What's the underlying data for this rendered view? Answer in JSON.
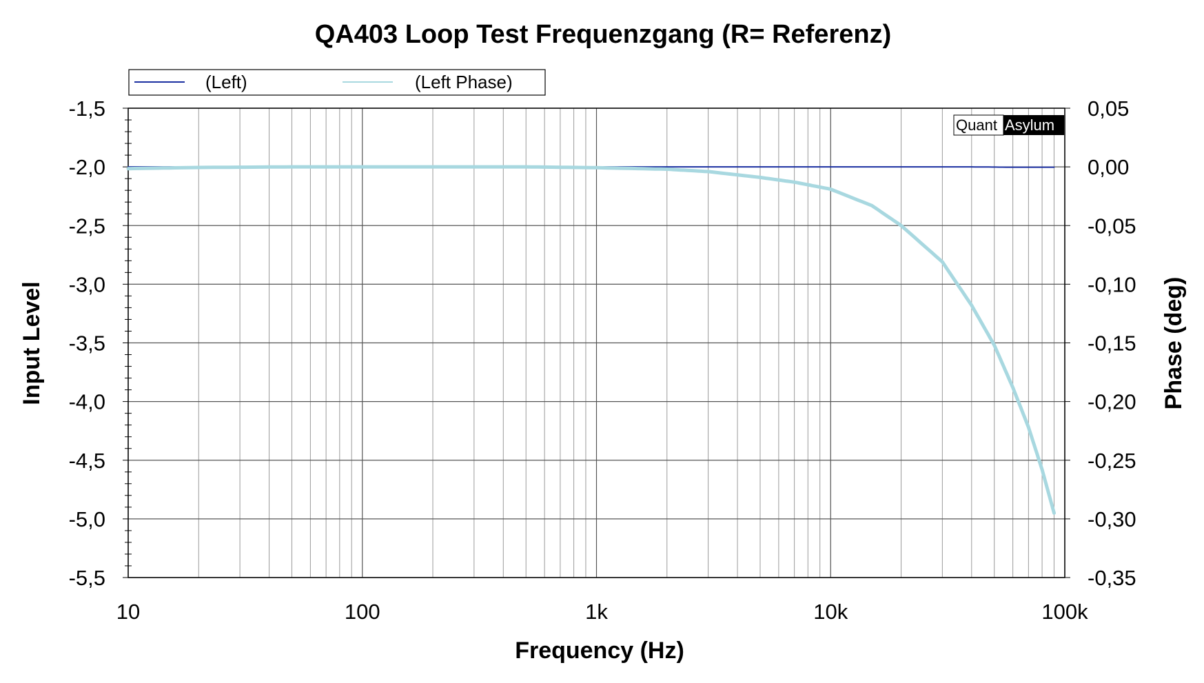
{
  "chart_data": {
    "type": "line",
    "title": "QA403 Loop Test Frequenzgang (R= Referenz)",
    "xlabel": "Frequency (Hz)",
    "ylabel": "Input Level",
    "y2label": "Phase (deg)",
    "xscale": "log",
    "xlim": [
      10,
      100000
    ],
    "ylim": [
      -5.5,
      -1.5
    ],
    "y2lim": [
      -0.35,
      0.05
    ],
    "grid": true,
    "legend_position": "top-left",
    "x_ticks": [
      10,
      100,
      1000,
      10000,
      100000
    ],
    "x_tick_labels": [
      "10",
      "100",
      "1k",
      "10k",
      "100k"
    ],
    "y_ticks": [
      -1.5,
      -2.0,
      -2.5,
      -3.0,
      -3.5,
      -4.0,
      -4.5,
      -5.0,
      -5.5
    ],
    "y_tick_labels": [
      "-1,5",
      "-2,0",
      "-2,5",
      "-3,0",
      "-3,5",
      "-4,0",
      "-4,5",
      "-5,0",
      "-5,5"
    ],
    "y2_ticks": [
      0.05,
      0.0,
      -0.05,
      -0.1,
      -0.15,
      -0.2,
      -0.25,
      -0.3,
      -0.35
    ],
    "y2_tick_labels": [
      "0,05",
      "0,00",
      "-0,05",
      "-0,10",
      "-0,15",
      "-0,20",
      "-0,25",
      "-0,30",
      "-0,35"
    ],
    "series": [
      {
        "name": "(Left)",
        "axis": "left",
        "color": "#1a2fa0",
        "x": [
          10,
          100,
          1000,
          10000,
          40000,
          60000,
          90000
        ],
        "y": [
          -2.0,
          -2.0,
          -2.0,
          -2.0,
          -2.0,
          -2.003,
          -2.003
        ]
      },
      {
        "name": "(Left Phase)",
        "axis": "right",
        "color": "#a8d8e0",
        "x": [
          10,
          20,
          50,
          100,
          200,
          500,
          1000,
          2000,
          3000,
          5000,
          7000,
          10000,
          15000,
          20000,
          30000,
          40000,
          50000,
          60000,
          70000,
          80000,
          90000
        ],
        "y": [
          -0.0015,
          -0.0005,
          0.0,
          0.0,
          0.0,
          0.0,
          -0.0007,
          -0.002,
          -0.004,
          -0.009,
          -0.013,
          -0.019,
          -0.033,
          -0.05,
          -0.081,
          -0.118,
          -0.152,
          -0.188,
          -0.222,
          -0.258,
          -0.295
        ]
      }
    ]
  },
  "brand": {
    "left": "Quant",
    "right": "Asylum"
  }
}
